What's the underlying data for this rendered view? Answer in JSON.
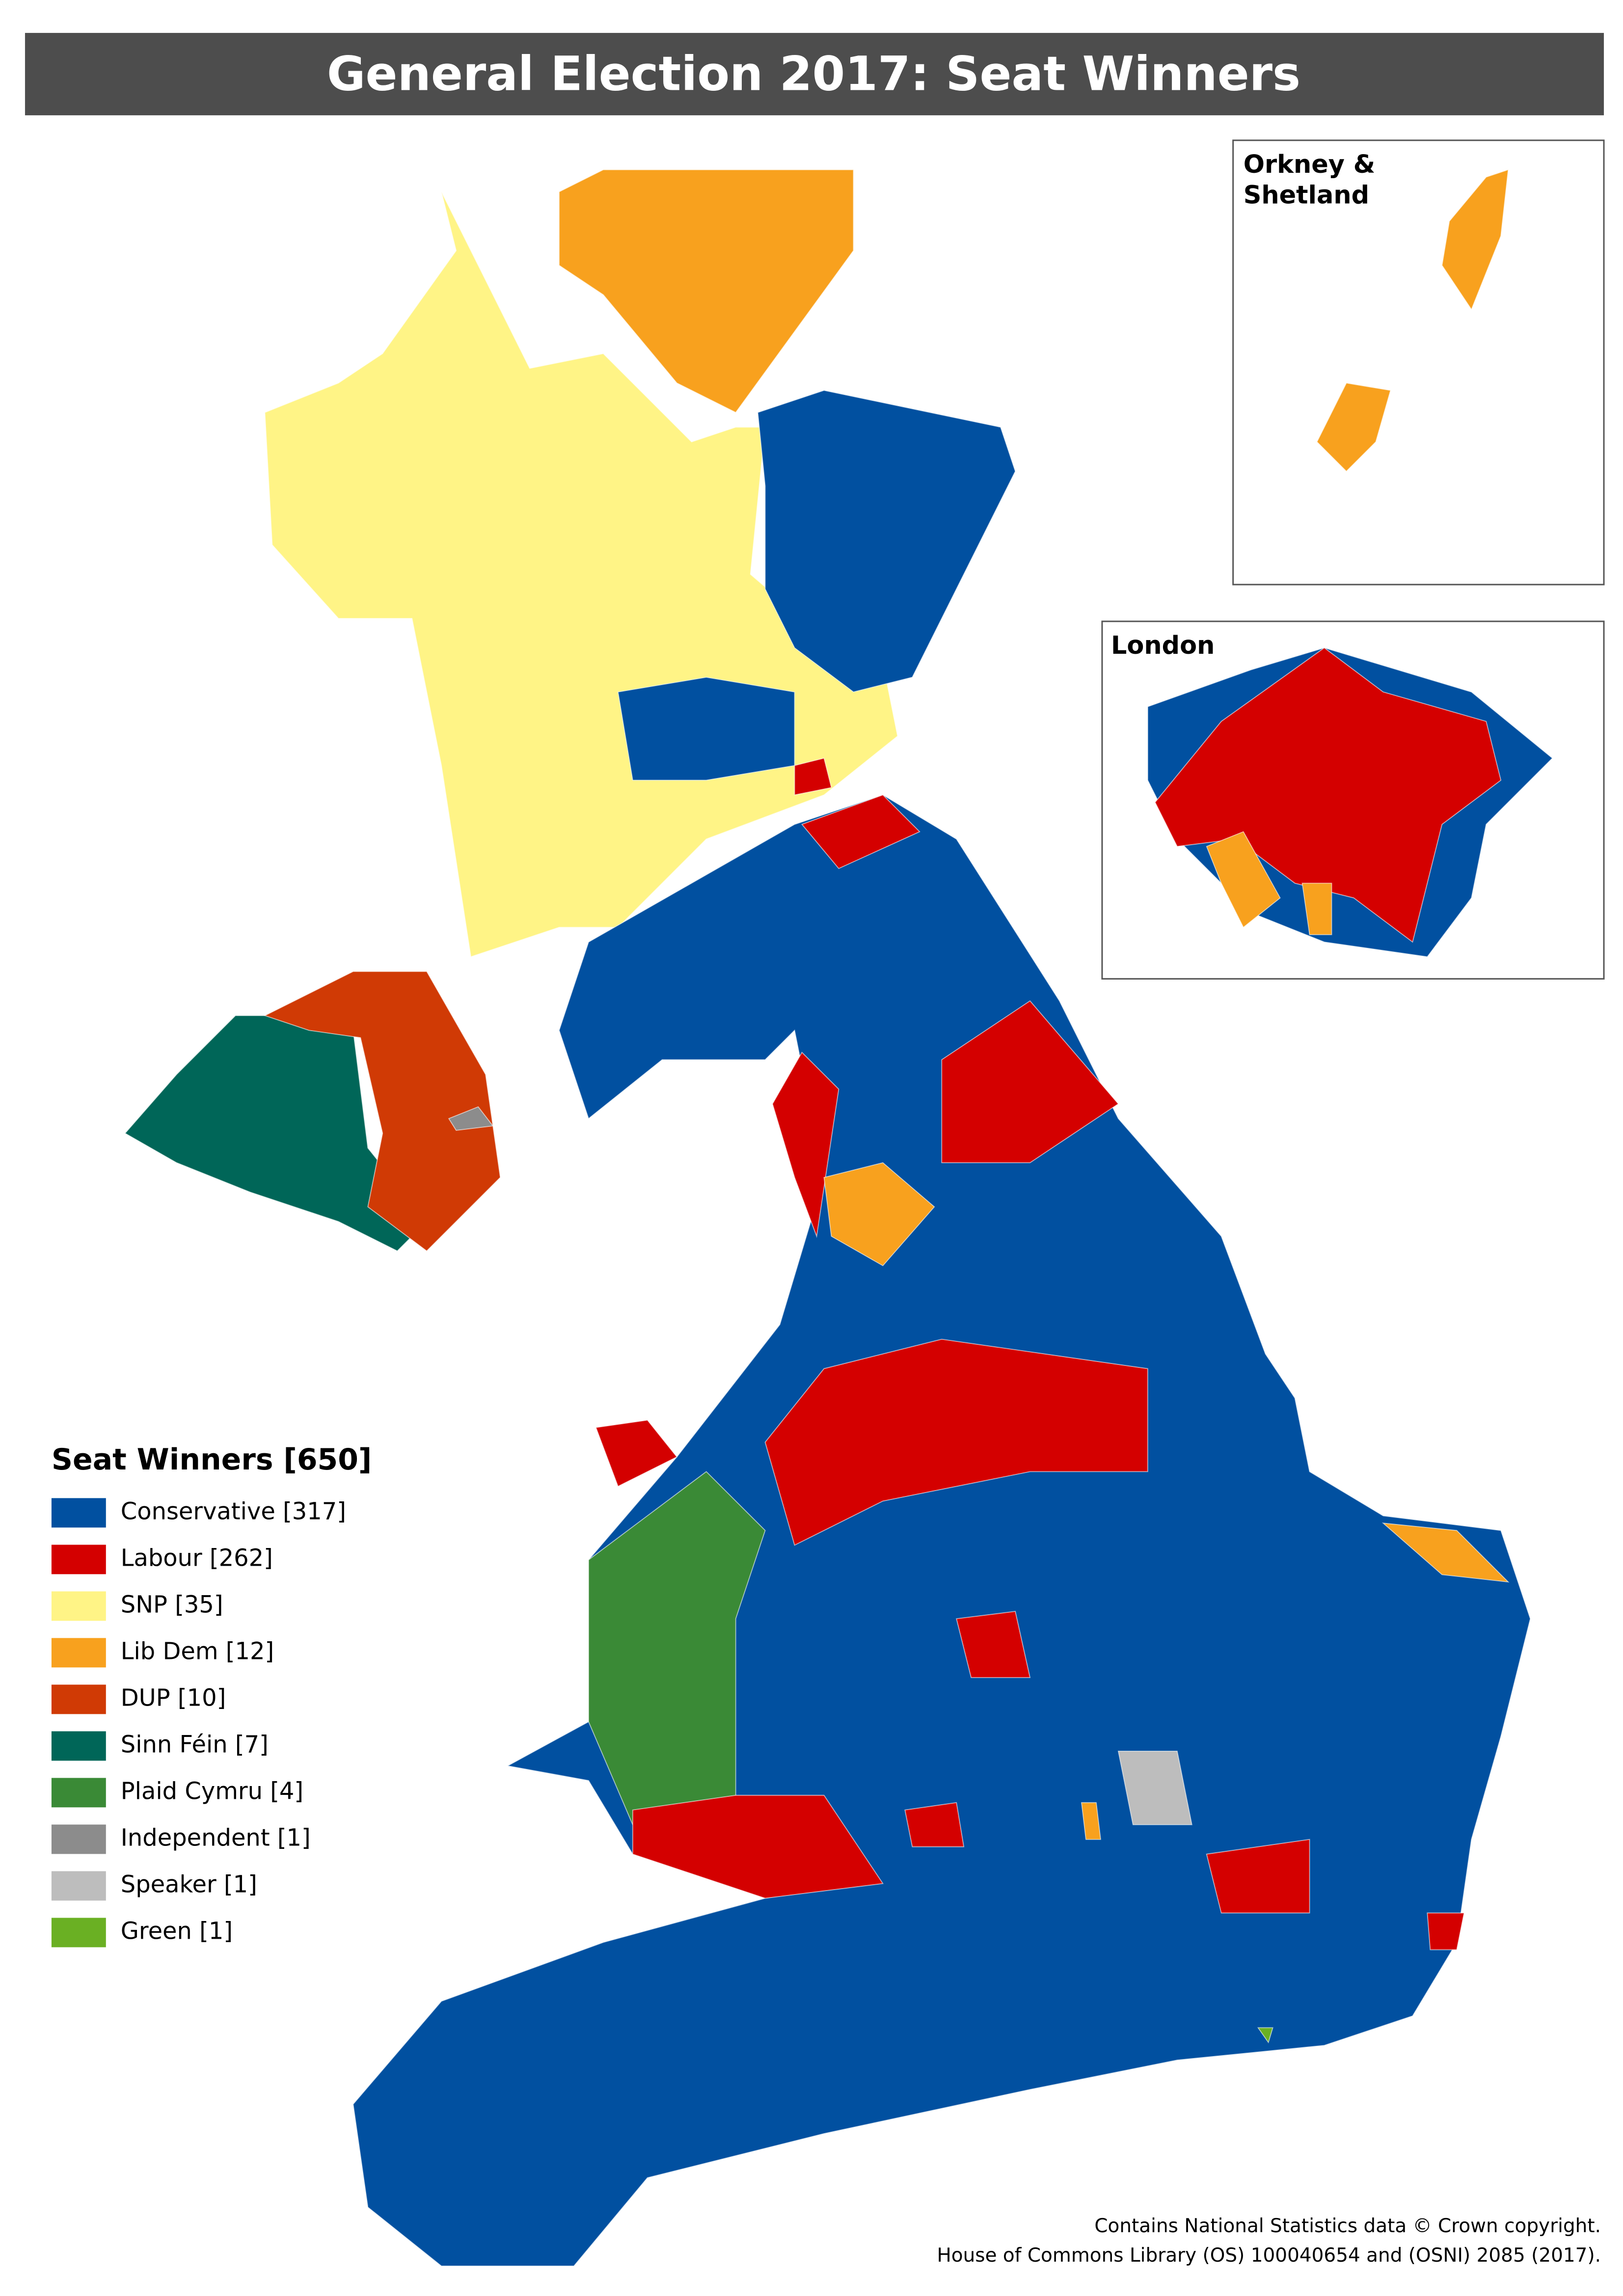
{
  "title": "General Election 2017: Seat Winners",
  "legend": {
    "title": "Seat Winners [650]",
    "items": [
      {
        "label": "Conservative [317]",
        "color": "#0150a0"
      },
      {
        "label": "Labour [262]",
        "color": "#d40000"
      },
      {
        "label": "SNP [35]",
        "color": "#fff486"
      },
      {
        "label": "Lib Dem [12]",
        "color": "#f8a11e"
      },
      {
        "label": "DUP [10]",
        "color": "#d03a05"
      },
      {
        "label": "Sinn Féin [7]",
        "color": "#006658"
      },
      {
        "label": "Plaid Cymru [4]",
        "color": "#3a8a36"
      },
      {
        "label": "Independent [1]",
        "color": "#8c8c8c"
      },
      {
        "label": "Speaker [1]",
        "color": "#bdbdbd"
      },
      {
        "label": "Green [1]",
        "color": "#6ab023"
      }
    ]
  },
  "insets": {
    "orkney": [
      "Orkney &",
      "Shetland"
    ],
    "london": "London"
  },
  "footer": [
    "Contains National Statistics data © Crown copyright.",
    "House of Commons Library (OS) 100040654 and (OSNI) 2085 (2017)."
  ]
}
